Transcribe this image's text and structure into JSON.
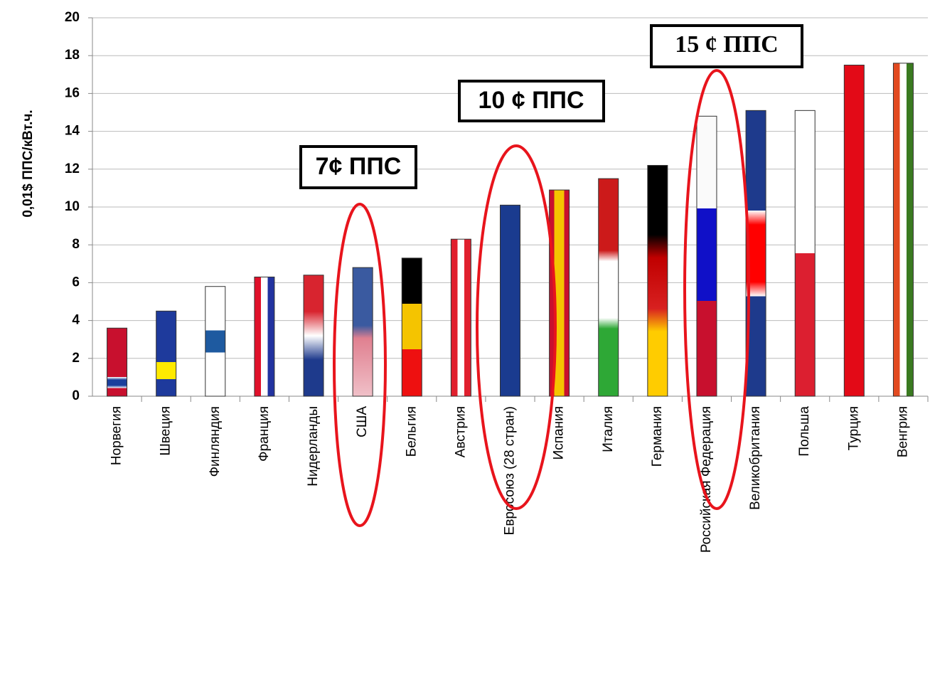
{
  "chart_data": {
    "type": "bar",
    "y_label": "0,01$ ППС/кВт.ч.",
    "categories": [
      "Норвегия",
      "Швеция",
      "Финляндия",
      "Франция",
      "Нидерланды",
      "США",
      "Бельгия",
      "Австрия",
      "Евросоюз (28 стран)",
      "Испания",
      "Италия",
      "Германия",
      "Российская Федерация",
      "Великобритания",
      "Польша",
      "Турция",
      "Венгрия"
    ],
    "values": [
      3.6,
      4.5,
      5.8,
      6.3,
      6.4,
      6.8,
      7.3,
      8.3,
      10.1,
      10.9,
      11.5,
      12.2,
      14.8,
      15.1,
      15.1,
      17.5,
      17.6
    ],
    "ylim": [
      0,
      20
    ],
    "yticks": [
      0,
      2,
      4,
      6,
      8,
      10,
      12,
      14,
      16,
      18,
      20
    ],
    "grid": true,
    "annotations": [
      "7¢ ППС",
      "10 ¢ ППС",
      "15 ¢ ППС"
    ]
  }
}
